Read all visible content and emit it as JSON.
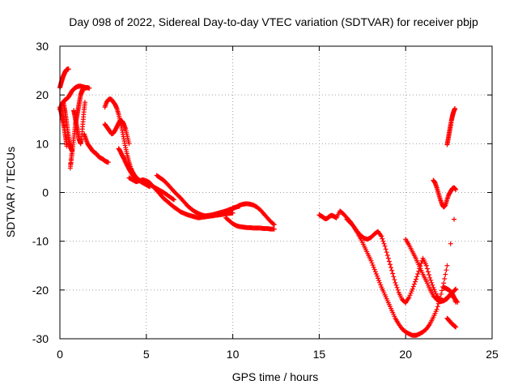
{
  "chart_data": {
    "type": "scatter",
    "title": "Day 098 of 2022, Sidereal Day-to-day VTEC variation (SDTVAR) for receiver pbjp",
    "xlabel": "GPS time / hours",
    "ylabel": "SDTVAR / TECUs",
    "xlim": [
      0,
      25
    ],
    "ylim": [
      -30,
      30
    ],
    "xticks": [
      "0",
      "5",
      "10",
      "15",
      "20",
      "25"
    ],
    "yticks": [
      "-30",
      "-20",
      "-10",
      "0",
      "10",
      "20",
      "30"
    ],
    "grid": true,
    "marker": "plus",
    "series": [
      {
        "name": "pbjp",
        "color": "#ff0000",
        "x": [
          0.0,
          0.05,
          0.1,
          0.15,
          0.2,
          0.25,
          0.3,
          0.35,
          0.4,
          0.45,
          0.5,
          0.0,
          0.05,
          0.1,
          0.15,
          0.2,
          0.25,
          0.3,
          0.35,
          0.4,
          0.0,
          0.1,
          0.2,
          0.3,
          0.4,
          0.5,
          0.6,
          0.7,
          0.8,
          0.9,
          1.0,
          1.1,
          1.2,
          1.3,
          1.4,
          1.5,
          1.6,
          1.7,
          0.2,
          0.25,
          0.3,
          0.35,
          0.4,
          0.45,
          0.5,
          0.55,
          0.6,
          0.65,
          0.7,
          0.6,
          0.65,
          0.7,
          0.75,
          0.8,
          0.85,
          0.9,
          0.95,
          1.0,
          1.05,
          1.1,
          1.15,
          1.2,
          1.25,
          1.3,
          1.35,
          1.4,
          0.8,
          0.85,
          0.9,
          0.95,
          1.0,
          1.05,
          1.1,
          1.15,
          1.2,
          1.25,
          1.3,
          1.35,
          1.4,
          1.45,
          1.4,
          1.5,
          1.6,
          1.7,
          1.8,
          1.9,
          2.0,
          2.1,
          2.2,
          2.3,
          2.4,
          2.5,
          2.6,
          2.7,
          2.8,
          2.6,
          2.7,
          2.8,
          2.9,
          3.0,
          3.1,
          3.2,
          3.3,
          3.4,
          3.5,
          3.6,
          3.7,
          3.8,
          3.9,
          4.0,
          4.1,
          4.2,
          4.3,
          4.4,
          4.5,
          4.6,
          4.7,
          4.8,
          4.9,
          5.0,
          5.1,
          5.2,
          2.6,
          2.7,
          2.8,
          2.9,
          3.0,
          3.1,
          3.2,
          3.3,
          3.4,
          3.5,
          3.6,
          3.7,
          3.8,
          3.9,
          4.0,
          3.4,
          3.5,
          3.6,
          3.7,
          3.8,
          3.9,
          4.0,
          4.1,
          4.2,
          4.3,
          4.4,
          4.5,
          4.6,
          4.7,
          4.8,
          4.9,
          5.0,
          5.2,
          5.4,
          5.6,
          5.8,
          6.0,
          6.2,
          6.4,
          6.6,
          4.0,
          4.2,
          4.4,
          4.6,
          4.8,
          5.0,
          5.2,
          5.4,
          5.6,
          5.8,
          6.0,
          6.2,
          6.4,
          6.6,
          6.8,
          7.0,
          7.2,
          7.4,
          7.6,
          7.8,
          8.0,
          8.2,
          8.4,
          8.6,
          8.8,
          9.0,
          9.2,
          9.4,
          9.6,
          9.8,
          10.0,
          5.6,
          5.8,
          6.0,
          6.2,
          6.4,
          6.6,
          6.8,
          7.0,
          7.2,
          7.4,
          7.6,
          7.8,
          8.0,
          8.2,
          8.4,
          8.6,
          8.8,
          9.0,
          9.2,
          9.4,
          9.6,
          9.8,
          10.0,
          10.2,
          10.4,
          10.0,
          10.2,
          10.4,
          10.6,
          10.8,
          11.0,
          11.2,
          11.4,
          11.6,
          11.8,
          12.0,
          12.2,
          12.4,
          9.6,
          9.8,
          10.0,
          10.2,
          10.4,
          10.6,
          10.8,
          11.0,
          11.2,
          11.4,
          11.6,
          11.8,
          12.0,
          12.2,
          12.4,
          15.0,
          15.1,
          15.2,
          15.3,
          15.4,
          15.5,
          15.6,
          15.7,
          15.8,
          15.9,
          16.0,
          16.2,
          16.4,
          16.6,
          16.8,
          17.0,
          17.2,
          17.4,
          17.6,
          17.8,
          18.0,
          18.2,
          18.4,
          18.6,
          18.8,
          19.0,
          19.2,
          19.4,
          19.6,
          19.8,
          20.0,
          20.2,
          20.4,
          20.6,
          20.8,
          21.0,
          21.2,
          21.4,
          21.6,
          21.8,
          22.0,
          22.2,
          22.4,
          22.6,
          22.8,
          23.0,
          16.6,
          16.8,
          17.0,
          17.2,
          17.4,
          17.6,
          17.8,
          18.0,
          18.2,
          18.4,
          18.6,
          18.8,
          19.0,
          19.2,
          19.4,
          19.6,
          19.8,
          20.0,
          20.2,
          20.4,
          20.6,
          20.8,
          21.0,
          21.2,
          21.4,
          21.6,
          21.8,
          22.0,
          22.2,
          22.4,
          22.6,
          22.8,
          21.6,
          21.7,
          21.8,
          21.9,
          22.0,
          22.1,
          22.2,
          22.3,
          22.4,
          22.5,
          22.6,
          22.7,
          22.8,
          22.9,
          22.4,
          22.45,
          22.5,
          22.55,
          22.6,
          22.65,
          22.7,
          22.75,
          22.8,
          22.85,
          22.4,
          22.5,
          22.6,
          22.7,
          22.8,
          22.9,
          22.2,
          22.3,
          22.4,
          22.5,
          22.6,
          22.7,
          22.8,
          22.9,
          20.0,
          20.2,
          20.4,
          20.6,
          20.8,
          21.0,
          21.2,
          21.4,
          21.6,
          21.8,
          22.0,
          22.2,
          22.4,
          22.6,
          22.8,
          22.9
        ],
        "y": [
          21.5,
          22.2,
          22.8,
          23.4,
          23.9,
          24.3,
          24.7,
          25.0,
          25.2,
          25.3,
          25.3,
          17.5,
          16.8,
          16.0,
          15.2,
          14.3,
          13.3,
          12.0,
          10.8,
          9.5,
          17.0,
          18.0,
          18.6,
          19.0,
          19.2,
          19.6,
          20.2,
          20.8,
          21.2,
          21.5,
          21.7,
          21.8,
          21.8,
          21.7,
          21.6,
          21.5,
          21.5,
          21.4,
          18.5,
          17.5,
          16.5,
          15.3,
          14.0,
          12.6,
          11.3,
          10.2,
          9.4,
          8.9,
          8.6,
          5.0,
          6.5,
          8.0,
          9.5,
          11.0,
          12.5,
          14.0,
          15.0,
          16.0,
          17.0,
          18.0,
          19.0,
          20.0,
          20.5,
          21.0,
          21.2,
          21.0,
          16.8,
          16.0,
          15.0,
          14.0,
          13.0,
          12.0,
          11.0,
          10.5,
          10.0,
          11.0,
          13.0,
          15.0,
          17.0,
          18.5,
          12.0,
          11.0,
          10.0,
          9.5,
          9.0,
          8.5,
          8.2,
          8.0,
          7.5,
          7.2,
          7.0,
          6.8,
          6.5,
          6.3,
          6.2,
          17.5,
          18.5,
          19.0,
          19.2,
          19.0,
          18.5,
          18.0,
          17.2,
          16.0,
          14.5,
          12.8,
          11.0,
          9.2,
          7.6,
          6.2,
          5.0,
          4.2,
          3.6,
          3.1,
          2.8,
          2.5,
          2.2,
          2.0,
          1.8,
          1.6,
          1.4,
          1.2,
          14.0,
          13.5,
          13.0,
          12.5,
          12.0,
          12.2,
          12.8,
          13.5,
          14.2,
          14.8,
          14.6,
          14.0,
          13.0,
          11.5,
          10.0,
          9.0,
          8.4,
          7.6,
          7.0,
          6.2,
          5.5,
          4.8,
          4.2,
          3.6,
          3.2,
          2.8,
          2.6,
          2.4,
          2.3,
          2.2,
          2.1,
          2.0,
          1.6,
          1.2,
          0.8,
          0.4,
          0.0,
          -0.5,
          -1.0,
          -1.5,
          3.0,
          2.6,
          2.2,
          2.4,
          2.6,
          2.4,
          2.0,
          1.2,
          0.4,
          -0.4,
          -1.2,
          -1.8,
          -2.4,
          -3.0,
          -3.5,
          -4.0,
          -4.3,
          -4.6,
          -4.8,
          -5.0,
          -5.2,
          -5.1,
          -5.0,
          -4.9,
          -4.8,
          -4.7,
          -4.6,
          -4.5,
          -4.4,
          -4.3,
          -4.2,
          3.5,
          3.0,
          2.5,
          1.8,
          1.0,
          0.2,
          -0.5,
          -1.2,
          -2.0,
          -2.8,
          -3.4,
          -3.9,
          -4.3,
          -4.6,
          -4.8,
          -4.7,
          -4.6,
          -4.4,
          -4.2,
          -4.0,
          -3.8,
          -3.5,
          -3.3,
          -3.0,
          -2.8,
          -3.2,
          -3.0,
          -2.6,
          -2.4,
          -2.3,
          -2.4,
          -2.6,
          -3.0,
          -3.6,
          -4.4,
          -5.2,
          -6.0,
          -6.6,
          -5.2,
          -5.8,
          -6.4,
          -6.8,
          -7.0,
          -7.1,
          -7.2,
          -7.2,
          -7.3,
          -7.3,
          -7.3,
          -7.4,
          -7.4,
          -7.5,
          -7.5,
          -4.6,
          -4.8,
          -5.0,
          -5.3,
          -5.4,
          -5.2,
          -4.9,
          -4.7,
          -4.8,
          -5.0,
          -5.2,
          -3.8,
          -4.4,
          -5.2,
          -6.0,
          -7.0,
          -8.0,
          -8.8,
          -9.4,
          -9.6,
          -9.2,
          -8.5,
          -8.0,
          -9.0,
          -11.0,
          -13.5,
          -16.0,
          -18.5,
          -20.5,
          -22.0,
          -22.6,
          -21.5,
          -19.8,
          -17.8,
          -15.6,
          -13.5,
          -15.0,
          -17.5,
          -19.5,
          -21.2,
          -22.0,
          -22.2,
          -21.8,
          -21.0,
          -21.5,
          -22.5,
          -5.5,
          -6.2,
          -7.0,
          -8.2,
          -9.5,
          -11.0,
          -12.5,
          -14.0,
          -15.8,
          -17.6,
          -19.4,
          -21.0,
          -22.6,
          -24.2,
          -25.8,
          -27.0,
          -28.0,
          -28.6,
          -29.0,
          -29.3,
          -29.3,
          -29.0,
          -28.6,
          -28.0,
          -27.0,
          -25.6,
          -24.0,
          -21.6,
          -18.6,
          -15.0,
          -10.5,
          -5.5,
          2.5,
          2.0,
          1.0,
          -0.2,
          -1.4,
          -2.4,
          -3.0,
          -2.6,
          -1.4,
          -0.4,
          0.2,
          0.8,
          1.0,
          0.6,
          9.8,
          10.8,
          11.8,
          12.8,
          13.8,
          14.8,
          15.6,
          16.3,
          16.8,
          17.2,
          -25.8,
          -26.2,
          -26.6,
          -27.0,
          -27.3,
          -27.6,
          -19.5,
          -19.6,
          -19.8,
          -20.0,
          -20.3,
          -20.8,
          -21.5,
          -22.5,
          -9.6,
          -10.8,
          -12.2,
          -13.6,
          -15.2,
          -16.8,
          -18.2,
          -19.8,
          -21.2,
          -22.0,
          -22.4,
          -22.2,
          -21.6,
          -20.8,
          -20.2,
          -19.8
        ]
      }
    ]
  }
}
